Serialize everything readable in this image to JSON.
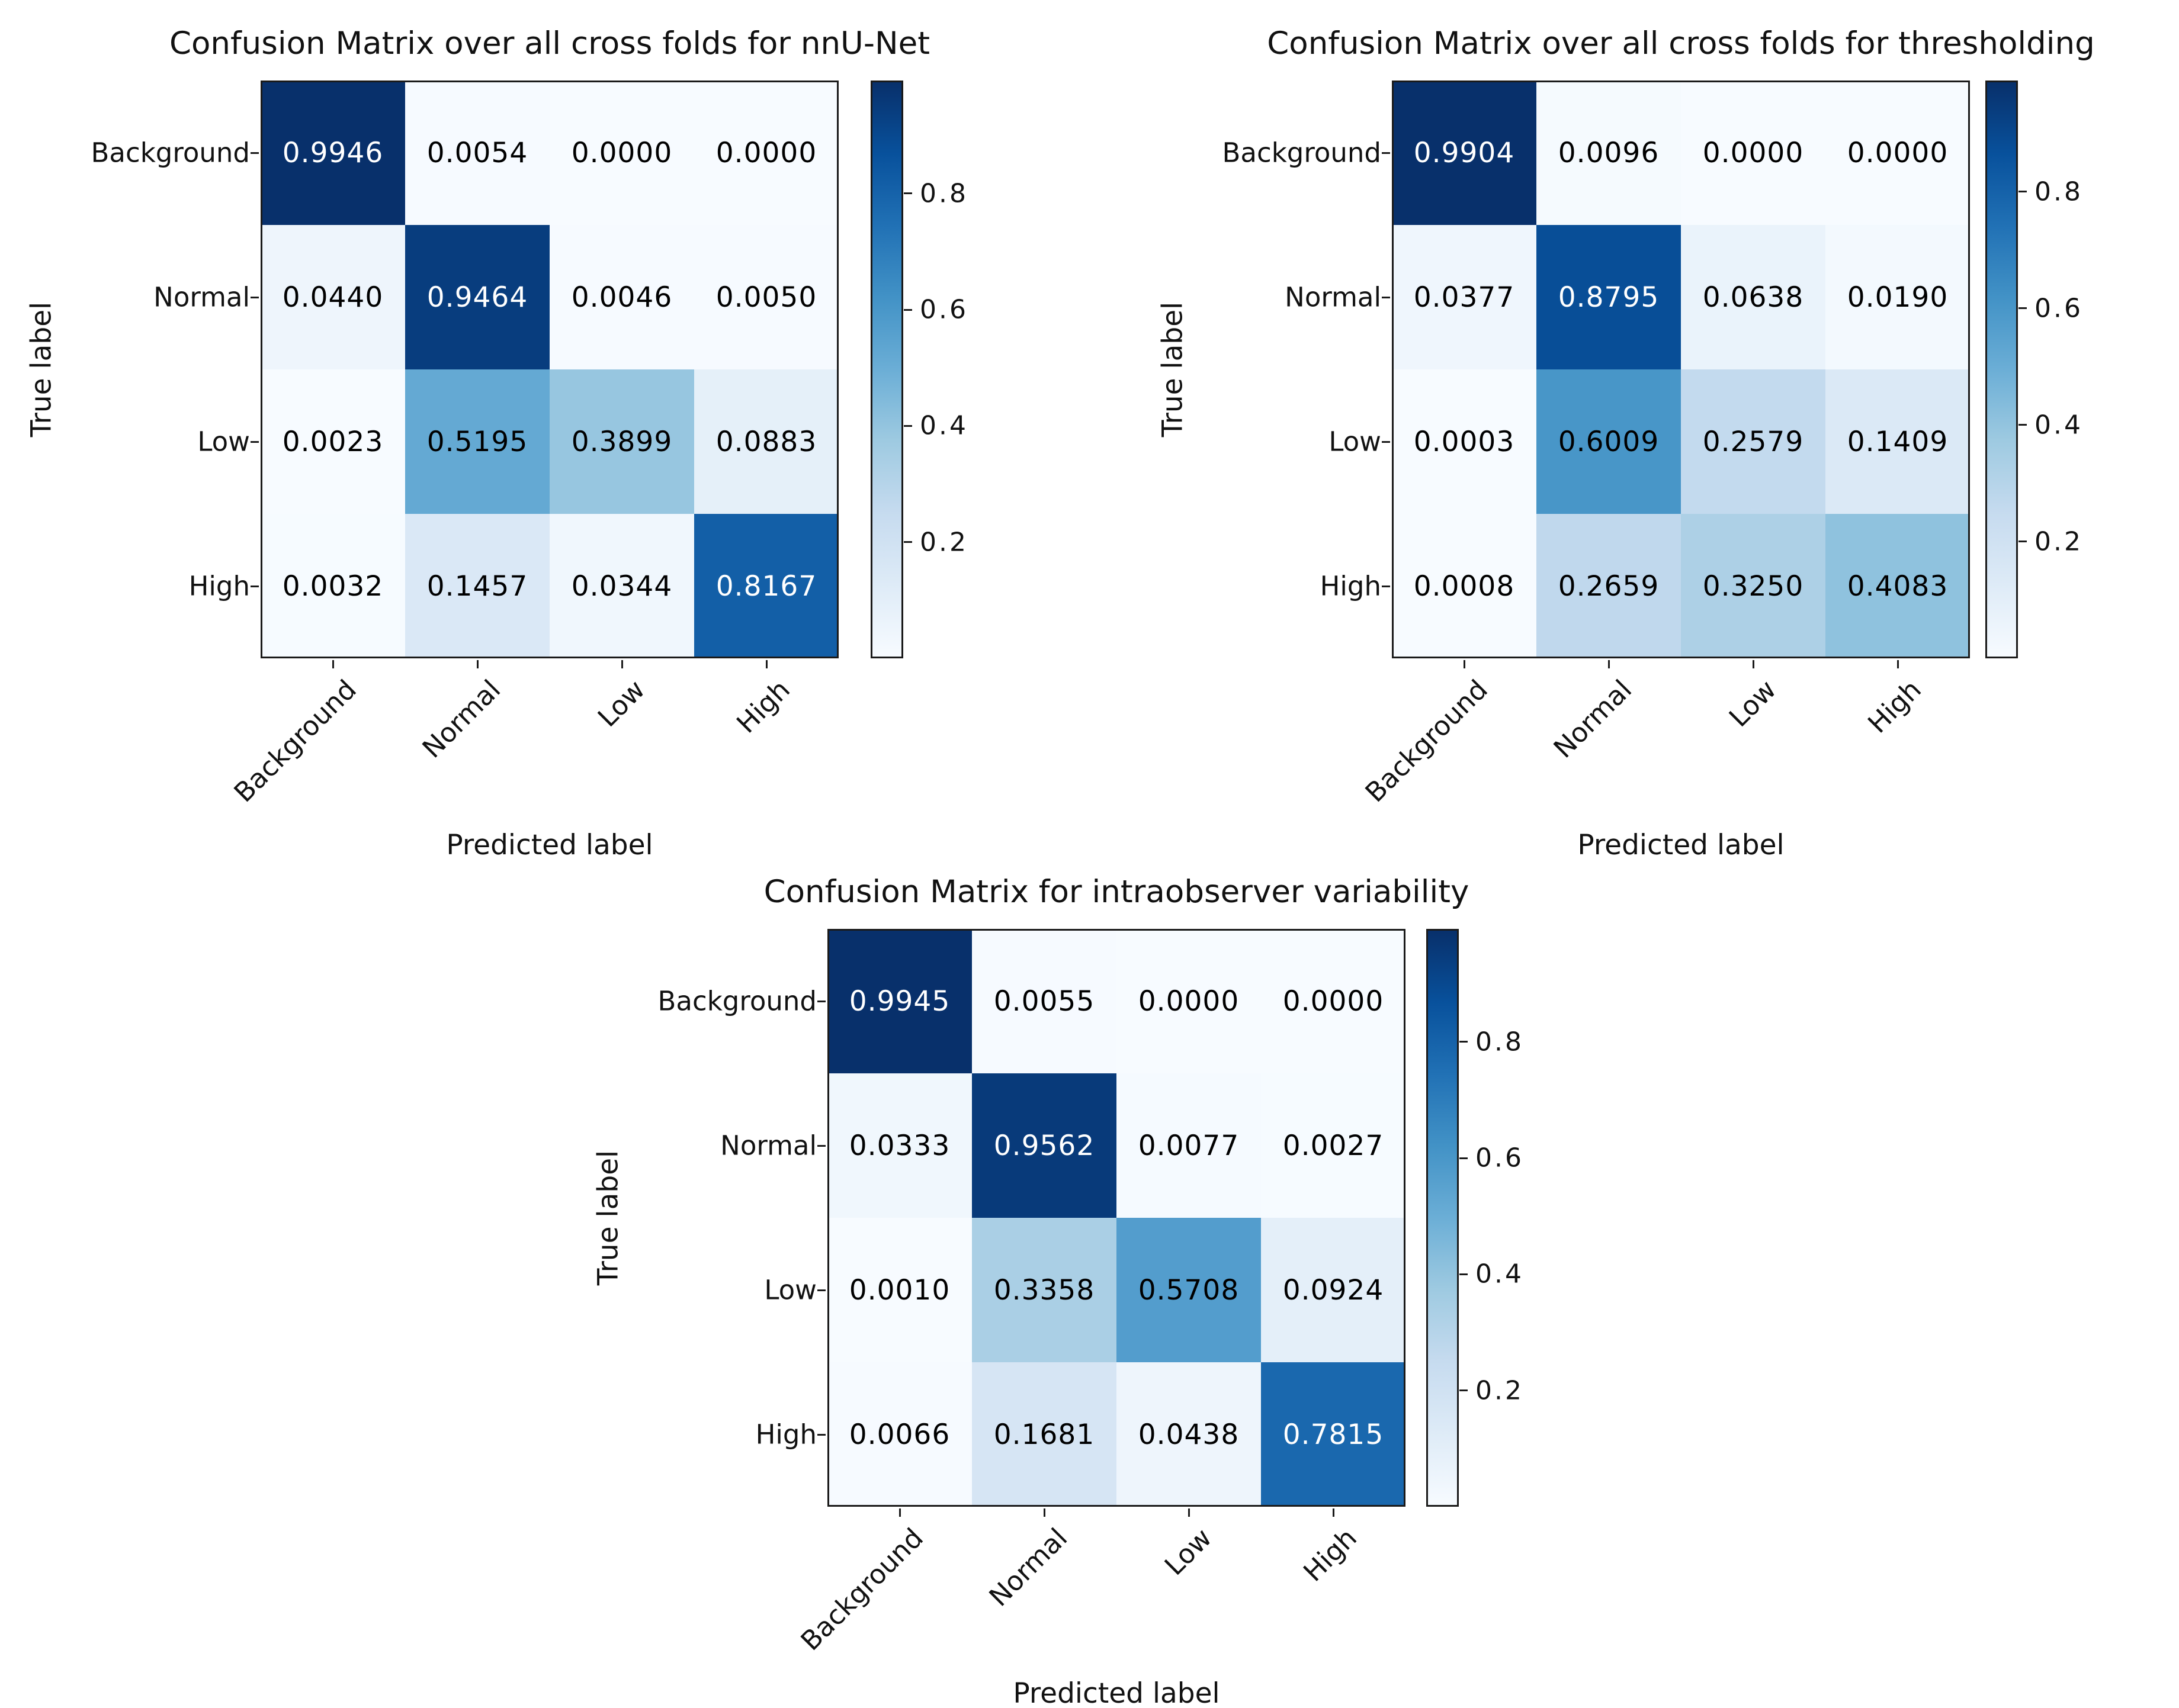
{
  "colors": {
    "blues": [
      "#f7fbff",
      "#deebf7",
      "#c6dbef",
      "#9ecae1",
      "#6baed6",
      "#4292c6",
      "#2171b5",
      "#08519c",
      "#08306b"
    ],
    "cell_text_light": "#ffffff",
    "cell_text_dark": "#000000",
    "axis": "#1a1a1a",
    "background": "#ffffff"
  },
  "chart_data": [
    {
      "type": "heatmap",
      "title": "Confusion Matrix over all cross folds for nnU-Net",
      "xlabel": "Predicted label",
      "ylabel": "True label",
      "classes": [
        "Background",
        "Normal",
        "Low",
        "High"
      ],
      "matrix": [
        [
          0.9946,
          0.0054,
          0.0,
          0.0
        ],
        [
          0.044,
          0.9464,
          0.0046,
          0.005
        ],
        [
          0.0023,
          0.5195,
          0.3899,
          0.0883
        ],
        [
          0.0032,
          0.1457,
          0.0344,
          0.8167
        ]
      ],
      "cell_labels": [
        [
          "0.9946",
          "0.0054",
          "0.0000",
          "0.0000"
        ],
        [
          "0.0440",
          "0.9464",
          "0.0046",
          "0.0050"
        ],
        [
          "0.0023",
          "0.5195",
          "0.3899",
          "0.0883"
        ],
        [
          "0.0032",
          "0.1457",
          "0.0344",
          "0.8167"
        ]
      ],
      "colormap": "Blues",
      "colorbar_ticks": [
        0.8,
        0.6,
        0.4,
        0.2
      ],
      "vmin": 0,
      "vmax": 0.9946,
      "legend_position": "right-colorbar",
      "grid": false
    },
    {
      "type": "heatmap",
      "title": "Confusion Matrix over all cross folds for thresholding",
      "xlabel": "Predicted label",
      "ylabel": "True label",
      "classes": [
        "Background",
        "Normal",
        "Low",
        "High"
      ],
      "matrix": [
        [
          0.9904,
          0.0096,
          0.0,
          0.0
        ],
        [
          0.0377,
          0.8795,
          0.0638,
          0.019
        ],
        [
          0.0003,
          0.6009,
          0.2579,
          0.1409
        ],
        [
          0.0008,
          0.2659,
          0.325,
          0.4083
        ]
      ],
      "cell_labels": [
        [
          "0.9904",
          "0.0096",
          "0.0000",
          "0.0000"
        ],
        [
          "0.0377",
          "0.8795",
          "0.0638",
          "0.0190"
        ],
        [
          "0.0003",
          "0.6009",
          "0.2579",
          "0.1409"
        ],
        [
          "0.0008",
          "0.2659",
          "0.3250",
          "0.4083"
        ]
      ],
      "colormap": "Blues",
      "colorbar_ticks": [
        0.8,
        0.6,
        0.4,
        0.2
      ],
      "vmin": 0,
      "vmax": 0.9904,
      "legend_position": "right-colorbar",
      "grid": false
    },
    {
      "type": "heatmap",
      "title": "Confusion Matrix for intraobserver variability",
      "xlabel": "Predicted label",
      "ylabel": "True label",
      "classes": [
        "Background",
        "Normal",
        "Low",
        "High"
      ],
      "matrix": [
        [
          0.9945,
          0.0055,
          0.0,
          0.0
        ],
        [
          0.0333,
          0.9562,
          0.0077,
          0.0027
        ],
        [
          0.001,
          0.3358,
          0.5708,
          0.0924
        ],
        [
          0.0066,
          0.1681,
          0.0438,
          0.7815
        ]
      ],
      "cell_labels": [
        [
          "0.9945",
          "0.0055",
          "0.0000",
          "0.0000"
        ],
        [
          "0.0333",
          "0.9562",
          "0.0077",
          "0.0027"
        ],
        [
          "0.0010",
          "0.3358",
          "0.5708",
          "0.0924"
        ],
        [
          "0.0066",
          "0.1681",
          "0.0438",
          "0.7815"
        ]
      ],
      "colormap": "Blues",
      "colorbar_ticks": [
        0.8,
        0.6,
        0.4,
        0.2
      ],
      "vmin": 0,
      "vmax": 0.9945,
      "legend_position": "right-colorbar",
      "grid": false
    }
  ]
}
